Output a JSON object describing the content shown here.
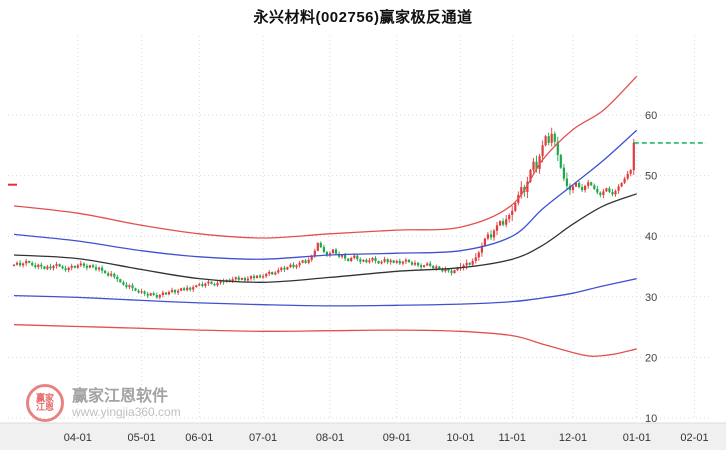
{
  "header": {
    "title": "永兴材料(002756)赢家极反通道"
  },
  "watermark": {
    "brand": "赢家江恩软件",
    "url": "www.yingjia360.com",
    "seal_line1": "赢家",
    "seal_line2": "江恩"
  },
  "chart_data": {
    "type": "candlestick",
    "title": "永兴材料(002756)赢家极反通道",
    "xlabel": "",
    "ylabel": "",
    "ylim": [
      10,
      67
    ],
    "grid": "dotted",
    "legend_position": "none",
    "y_ticks": [
      60,
      50,
      40,
      30,
      20,
      10
    ],
    "x_tick_labels": [
      "04-01",
      "05-01",
      "06-01",
      "07-01",
      "08-01",
      "09-01",
      "10-01",
      "11-01",
      "12-01",
      "01-01",
      "02-01"
    ],
    "month_boundaries": [
      21,
      42,
      61,
      82,
      104,
      126,
      147,
      164,
      184,
      205,
      224
    ],
    "colors": {
      "up": "#e23b3b",
      "down": "#1fa84a",
      "grid": "#d9d9d9",
      "axis_text": "#444444",
      "strip_bg": "#f0f0f0"
    },
    "closes": [
      35.3,
      35.6,
      35.2,
      35.5,
      35.9,
      35.6,
      35.2,
      34.9,
      35.3,
      35.0,
      34.6,
      35.0,
      34.7,
      35.1,
      35.4,
      35.0,
      34.7,
      34.4,
      34.8,
      35.1,
      34.8,
      35.2,
      35.5,
      35.1,
      34.8,
      35.2,
      34.9,
      34.5,
      34.8,
      34.3,
      33.9,
      33.5,
      33.8,
      33.3,
      32.9,
      32.4,
      32.0,
      31.6,
      31.9,
      31.4,
      31.0,
      30.7,
      30.9,
      30.5,
      30.2,
      30.6,
      30.3,
      29.9,
      30.3,
      30.7,
      30.4,
      30.8,
      31.1,
      30.7,
      31.0,
      31.4,
      31.1,
      31.5,
      31.2,
      31.6,
      31.9,
      32.1,
      31.8,
      32.2,
      32.5,
      32.1,
      31.9,
      32.3,
      32.7,
      32.4,
      32.8,
      32.5,
      32.9,
      33.2,
      32.8,
      33.1,
      32.7,
      33.0,
      33.4,
      33.1,
      33.5,
      33.2,
      33.4,
      33.8,
      34.1,
      33.7,
      34.0,
      34.4,
      34.8,
      34.5,
      34.9,
      35.3,
      34.9,
      35.2,
      35.6,
      36.0,
      35.6,
      36.1,
      36.8,
      37.6,
      38.9,
      38.2,
      37.4,
      36.9,
      37.2,
      37.8,
      37.1,
      36.6,
      36.9,
      36.3,
      35.9,
      36.4,
      36.8,
      36.2,
      35.8,
      36.1,
      35.7,
      36.0,
      36.4,
      35.9,
      35.5,
      35.8,
      36.2,
      35.7,
      36.0,
      35.6,
      35.9,
      35.5,
      35.8,
      36.1,
      35.7,
      35.3,
      35.6,
      35.2,
      34.9,
      35.2,
      35.5,
      35.1,
      34.7,
      35.0,
      34.6,
      34.2,
      34.6,
      34.3,
      33.9,
      34.4,
      34.7,
      34.9,
      35.2,
      35.6,
      35.3,
      35.9,
      36.5,
      37.3,
      38.4,
      39.6,
      40.3,
      39.8,
      40.9,
      41.8,
      42.5,
      41.9,
      42.8,
      43.5,
      44.2,
      45.5,
      46.8,
      48.1,
      47.3,
      49.0,
      50.9,
      52.3,
      51.1,
      53.2,
      55.0,
      56.5,
      55.4,
      56.9,
      55.6,
      53.4,
      51.3,
      49.5,
      48.3,
      47.6,
      48.2,
      48.8,
      48.1,
      47.6,
      48.3,
      48.9,
      48.4,
      47.8,
      47.2,
      46.8,
      47.4,
      47.9,
      47.3,
      46.9,
      47.5,
      48.2,
      48.8,
      49.5,
      50.3,
      50.9,
      55.4
    ],
    "channel_lines": [
      {
        "name": "upper-outer-red",
        "color": "#e35050",
        "points": [
          [
            0,
            45.0
          ],
          [
            21,
            43.8
          ],
          [
            42,
            41.8
          ],
          [
            61,
            40.4
          ],
          [
            82,
            39.7
          ],
          [
            104,
            40.4
          ],
          [
            126,
            41.0
          ],
          [
            147,
            41.5
          ],
          [
            164,
            45.2
          ],
          [
            174,
            52.6
          ],
          [
            184,
            57.6
          ],
          [
            194,
            60.8
          ],
          [
            205,
            66.4
          ]
        ]
      },
      {
        "name": "upper-inner-blue",
        "color": "#3f51d1",
        "points": [
          [
            0,
            40.3
          ],
          [
            21,
            39.2
          ],
          [
            42,
            37.6
          ],
          [
            61,
            36.6
          ],
          [
            82,
            36.2
          ],
          [
            104,
            36.9
          ],
          [
            126,
            37.2
          ],
          [
            147,
            37.6
          ],
          [
            164,
            40.0
          ],
          [
            174,
            44.5
          ],
          [
            184,
            48.5
          ],
          [
            194,
            52.5
          ],
          [
            205,
            57.5
          ]
        ]
      },
      {
        "name": "middle-black",
        "color": "#333333",
        "points": [
          [
            0,
            36.9
          ],
          [
            21,
            36.3
          ],
          [
            42,
            34.5
          ],
          [
            61,
            33.0
          ],
          [
            82,
            32.4
          ],
          [
            104,
            33.2
          ],
          [
            126,
            34.2
          ],
          [
            147,
            34.8
          ],
          [
            164,
            36.2
          ],
          [
            174,
            38.5
          ],
          [
            184,
            42.0
          ],
          [
            194,
            45.0
          ],
          [
            205,
            47.0
          ]
        ]
      },
      {
        "name": "lower-inner-blue",
        "color": "#3f51d1",
        "points": [
          [
            0,
            30.2
          ],
          [
            21,
            29.9
          ],
          [
            42,
            29.4
          ],
          [
            61,
            29.0
          ],
          [
            82,
            28.7
          ],
          [
            104,
            28.5
          ],
          [
            126,
            28.6
          ],
          [
            147,
            28.8
          ],
          [
            164,
            29.2
          ],
          [
            174,
            29.8
          ],
          [
            184,
            30.6
          ],
          [
            194,
            31.8
          ],
          [
            205,
            33.0
          ]
        ]
      },
      {
        "name": "lower-outer-red",
        "color": "#e35050",
        "points": [
          [
            0,
            25.4
          ],
          [
            21,
            25.1
          ],
          [
            42,
            24.8
          ],
          [
            61,
            24.5
          ],
          [
            82,
            24.3
          ],
          [
            104,
            24.4
          ],
          [
            126,
            24.5
          ],
          [
            147,
            24.3
          ],
          [
            164,
            23.6
          ],
          [
            174,
            22.2
          ],
          [
            184,
            20.8
          ],
          [
            190,
            20.2
          ],
          [
            197,
            20.5
          ],
          [
            205,
            21.4
          ]
        ]
      }
    ],
    "ref_line": {
      "value": 55.4,
      "color": "#00a84f",
      "style": "dashed",
      "from_index": 204
    },
    "edge_marks": [
      {
        "value": 48.5,
        "color": "#dd3333"
      }
    ]
  }
}
